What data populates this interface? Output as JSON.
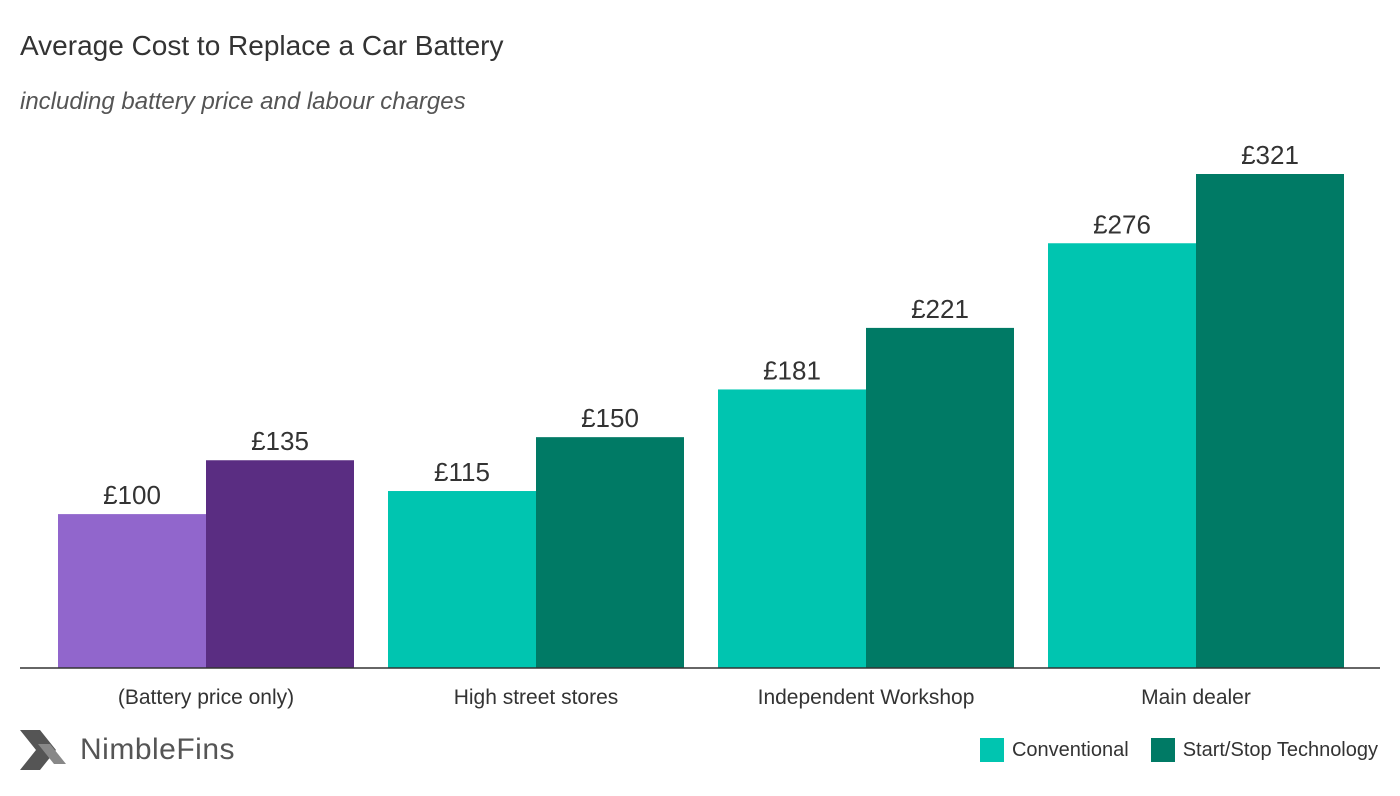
{
  "chart_data": {
    "type": "bar",
    "title": "Average Cost to Replace a Car Battery",
    "subtitle": "including battery price and labour charges",
    "categories": [
      "(Battery price only)",
      "High street stores",
      "Independent Workshop",
      "Main dealer"
    ],
    "series": [
      {
        "name": "Conventional",
        "values": [
          100,
          115,
          181,
          276
        ],
        "labels": [
          "£100",
          "£115",
          "£181",
          "£276"
        ]
      },
      {
        "name": "Start/Stop Technology",
        "values": [
          135,
          150,
          221,
          321
        ],
        "labels": [
          "£135",
          "£150",
          "£221",
          "£321"
        ]
      }
    ],
    "ylim": [
      0,
      321
    ],
    "xlabel": "",
    "ylabel": "",
    "grid": false,
    "legend_position": "bottom-right"
  },
  "colors": {
    "conventional": "#00c5b0",
    "start_stop": "#007a65",
    "battery_only_conventional": "#9166cc",
    "battery_only_start_stop": "#5a2d82",
    "axis": "#333333"
  },
  "brand": {
    "name": "NimbleFins",
    "icon": "nimblefins-chevron-icon"
  },
  "legend": {
    "items": [
      {
        "label": "Conventional",
        "color": "#00c5b0"
      },
      {
        "label": "Start/Stop Technology",
        "color": "#007a65"
      }
    ]
  }
}
